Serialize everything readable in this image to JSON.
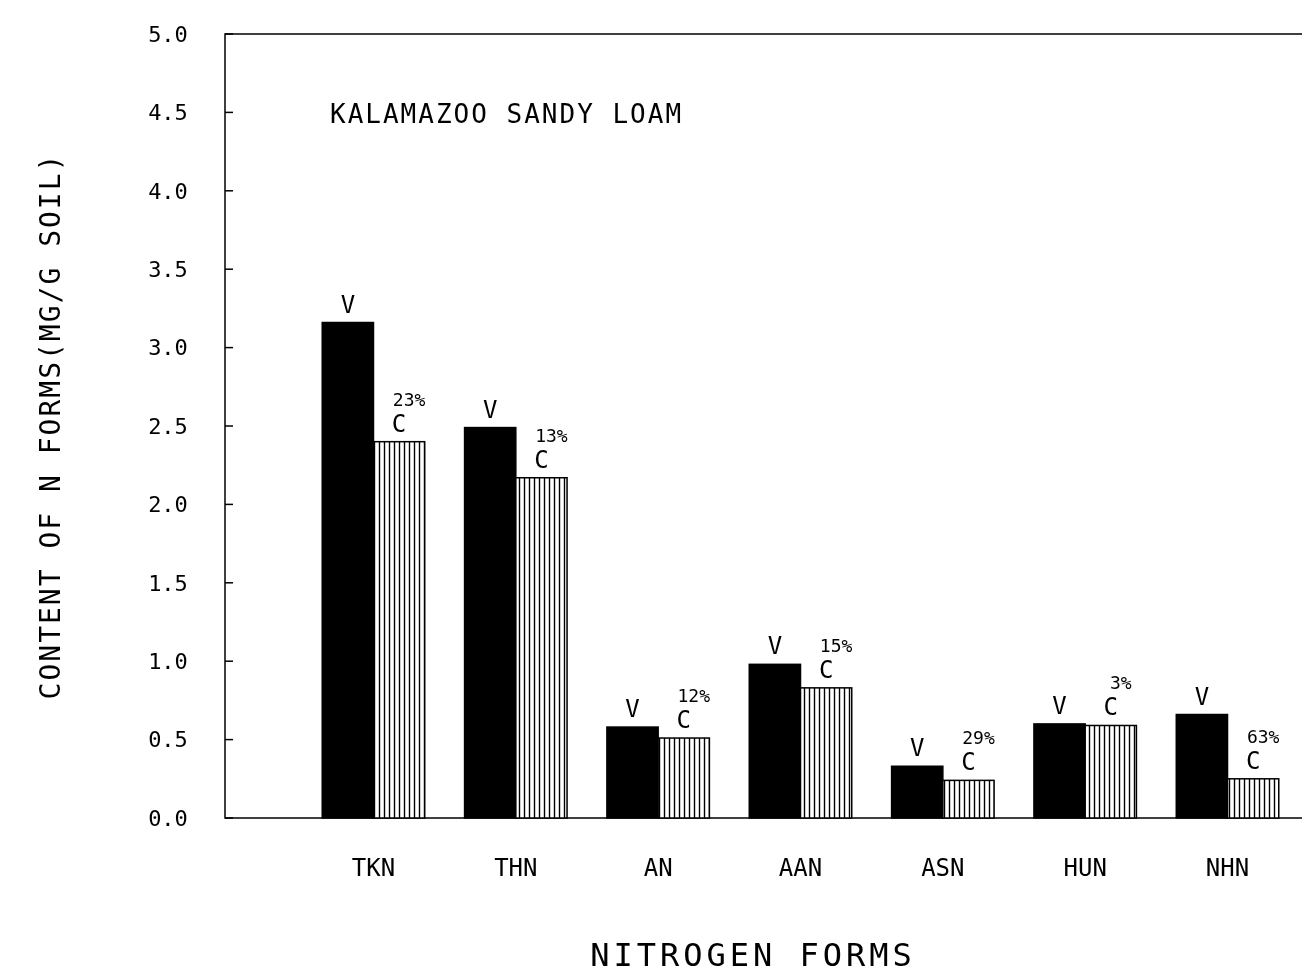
{
  "chart_data": {
    "type": "bar",
    "title": "KALAMAZOO SANDY LOAM",
    "xlabel": "NITROGEN FORMS",
    "ylabel": "CONTENT OF N FORMS(MG/G SOIL)",
    "categories": [
      "TKN",
      "THN",
      "AN",
      "AAN",
      "ASN",
      "HUN",
      "NHN"
    ],
    "series": [
      {
        "name": "V",
        "color": "#000000",
        "values": [
          3.16,
          2.49,
          0.58,
          0.98,
          0.33,
          0.6,
          0.66
        ]
      },
      {
        "name": "C",
        "color": "#000000",
        "values": [
          2.4,
          2.17,
          0.51,
          0.83,
          0.24,
          0.59,
          0.25
        ]
      }
    ],
    "ylim": [
      0,
      5
    ],
    "yticks": [
      {
        "value": 0,
        "label": "0.0"
      },
      {
        "value": 0.5,
        "label": "0.5"
      },
      {
        "value": 1,
        "label": "1.0"
      },
      {
        "value": 1.5,
        "label": "1.5"
      },
      {
        "value": 2,
        "label": "2.0"
      },
      {
        "value": 2.5,
        "label": "2.5"
      },
      {
        "value": 3,
        "label": "3.0"
      },
      {
        "value": 3.5,
        "label": "3.5"
      },
      {
        "value": 4,
        "label": "4.0"
      },
      {
        "value": 4.5,
        "label": "4.5"
      },
      {
        "value": 5,
        "label": "5.0"
      }
    ],
    "annotations": [
      {
        "text": "23%",
        "x": "TKN",
        "y": 2.4
      },
      {
        "text": "13%",
        "x": "THN",
        "y": 2.17
      },
      {
        "text": "12%",
        "x": "AN",
        "y": 0.51
      },
      {
        "text": "15%",
        "x": "AAN",
        "y": 0.83
      },
      {
        "text": "29%",
        "x": "ASN",
        "y": 0.24
      },
      {
        "text": "3%",
        "x": "HUN",
        "y": 0.59
      },
      {
        "text": "63%",
        "x": "NHN",
        "y": 0.25
      }
    ],
    "grid": false
  }
}
